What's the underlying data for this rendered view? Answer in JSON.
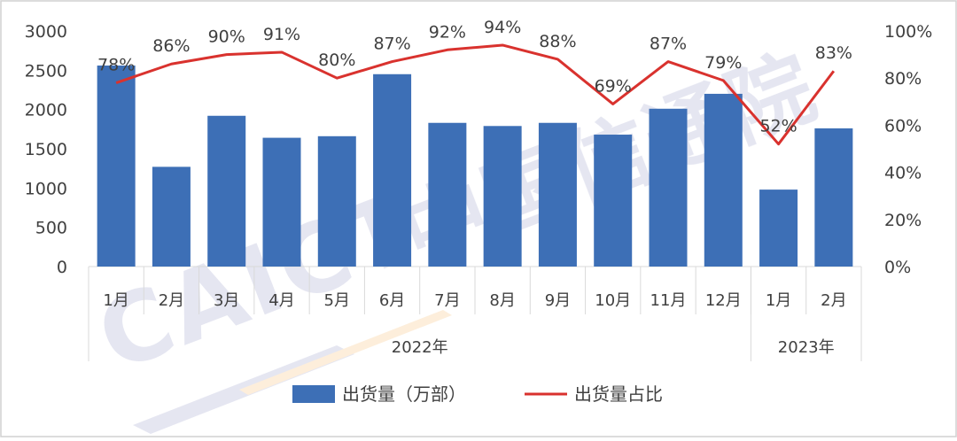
{
  "chart_data": {
    "type": "bar",
    "categories": [
      "1月",
      "2月",
      "3月",
      "4月",
      "5月",
      "6月",
      "7月",
      "8月",
      "9月",
      "10月",
      "11月",
      "12月",
      "1月",
      "2月"
    ],
    "year_groups": [
      {
        "label": "2022年",
        "count": 12
      },
      {
        "label": "2023年",
        "count": 2
      }
    ],
    "series": [
      {
        "name": "出货量（万部）",
        "axis": "left",
        "type": "bar",
        "color": "#3d6fb6",
        "values": [
          2560,
          1270,
          1920,
          1640,
          1660,
          2450,
          1830,
          1790,
          1830,
          1680,
          2010,
          2200,
          980,
          1760
        ]
      },
      {
        "name": "出货量占比",
        "axis": "right",
        "type": "line",
        "color": "#d9322e",
        "values": [
          78,
          86,
          90,
          91,
          80,
          87,
          92,
          94,
          88,
          69,
          87,
          79,
          52,
          83
        ],
        "data_labels": [
          "78%",
          "86%",
          "90%",
          "91%",
          "80%",
          "87%",
          "92%",
          "94%",
          "88%",
          "69%",
          "87%",
          "79%",
          "52%",
          "83%"
        ]
      }
    ],
    "y_left": {
      "min": 0,
      "max": 3000,
      "ticks": [
        "0",
        "500",
        "1000",
        "1500",
        "2000",
        "2500",
        "3000"
      ]
    },
    "y_right": {
      "min": 0,
      "max": 100,
      "ticks": [
        "0%",
        "20%",
        "40%",
        "60%",
        "80%",
        "100%"
      ]
    },
    "grid": false,
    "legend_position": "bottom",
    "watermark": "CAICT中国信通院"
  }
}
